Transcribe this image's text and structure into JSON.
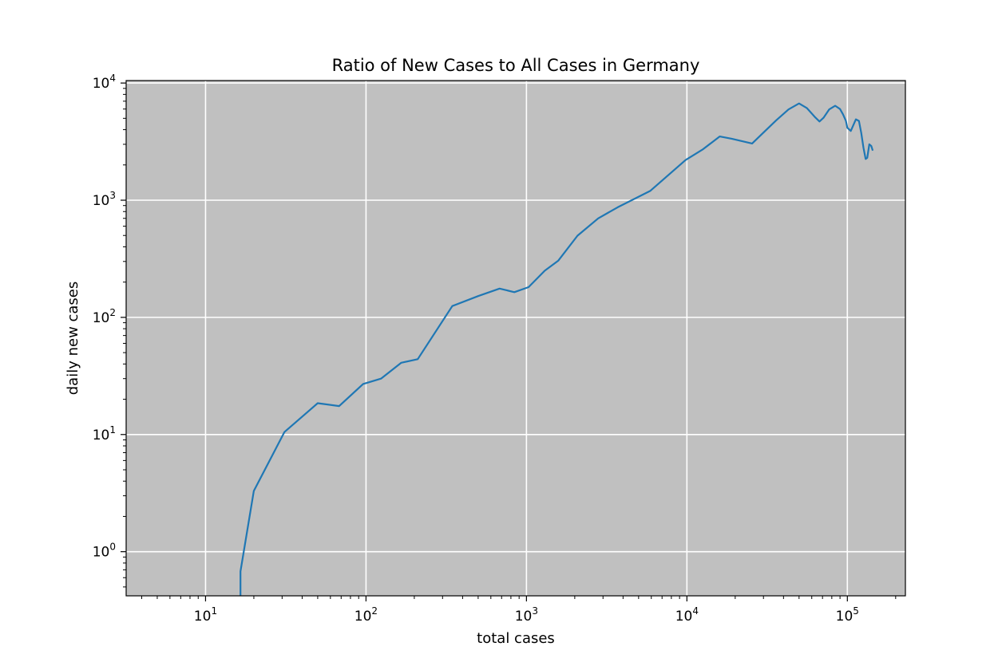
{
  "chart_data": {
    "type": "line",
    "title": "Ratio of New Cases to All Cases in Germany",
    "xlabel": "total cases",
    "ylabel": "daily new cases",
    "xscale": "log",
    "yscale": "log",
    "xlim": [
      3.2,
      230000
    ],
    "ylim": [
      0.42,
      10500
    ],
    "grid": true,
    "background_color": "#c0c0c0",
    "line_color": "#1f77b4",
    "x_tick_labels": [
      {
        "value": 10,
        "base": "10",
        "exp": "1"
      },
      {
        "value": 100,
        "base": "10",
        "exp": "2"
      },
      {
        "value": 1000,
        "base": "10",
        "exp": "3"
      },
      {
        "value": 10000,
        "base": "10",
        "exp": "4"
      },
      {
        "value": 100000,
        "base": "10",
        "exp": "5"
      }
    ],
    "y_tick_labels": [
      {
        "value": 1,
        "base": "10",
        "exp": "0"
      },
      {
        "value": 10,
        "base": "10",
        "exp": "1"
      },
      {
        "value": 100,
        "base": "10",
        "exp": "2"
      },
      {
        "value": 1000,
        "base": "10",
        "exp": "3"
      },
      {
        "value": 10000,
        "base": "10",
        "exp": "4"
      }
    ],
    "series": [
      {
        "x": [
          16.5,
          16.5,
          20,
          31,
          50,
          68,
          96,
          124,
          166,
          210,
          345,
          500,
          680,
          840,
          1030,
          1300,
          1580,
          2080,
          2800,
          3700,
          5900,
          9800,
          12500,
          16000,
          19000,
          25500,
          31000,
          36000,
          43000,
          50000,
          56000,
          63000,
          67000,
          71000,
          77000,
          84000,
          90000,
          94000,
          98000,
          100000,
          105000,
          110000,
          113000,
          118000,
          122000,
          126000,
          130000,
          133000,
          137000,
          141000,
          144000
        ],
        "y": [
          0.42,
          0.68,
          3.3,
          10.5,
          18.5,
          17.5,
          27,
          30,
          41,
          44,
          125,
          152,
          176,
          164,
          181,
          250,
          305,
          498,
          700,
          870,
          1200,
          2200,
          2700,
          3500,
          3350,
          3050,
          3950,
          4800,
          5950,
          6700,
          6100,
          5100,
          4700,
          5050,
          5950,
          6400,
          6000,
          5400,
          4750,
          4150,
          3900,
          4500,
          4900,
          4750,
          3750,
          2800,
          2250,
          2300,
          3000,
          2900,
          2650
        ]
      }
    ]
  }
}
